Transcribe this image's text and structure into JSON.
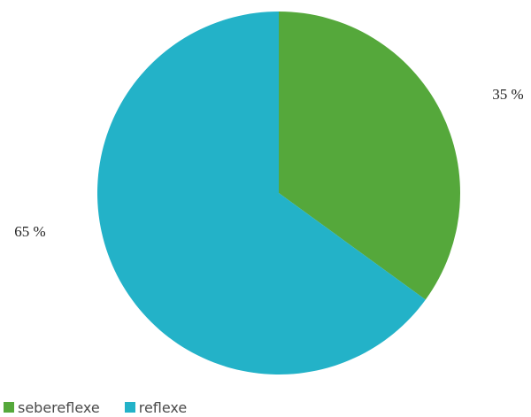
{
  "chart_data": {
    "type": "pie",
    "categories": [
      "sebereflexe",
      "reflexe"
    ],
    "values": [
      35,
      65
    ],
    "data_labels": [
      "35 %",
      "65 %"
    ],
    "colors": [
      "#55a83b",
      "#23b2c8"
    ],
    "start_angle_deg": 0,
    "direction": "clockwise",
    "legend_position": "bottom-left",
    "title": ""
  }
}
